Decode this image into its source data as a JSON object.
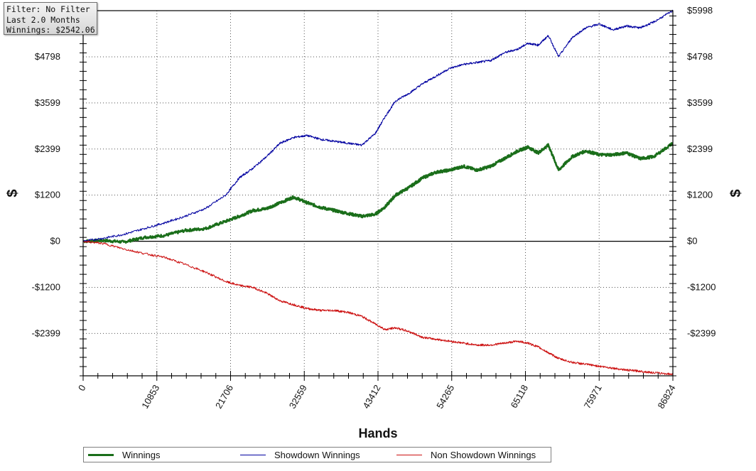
{
  "info": {
    "filter": "Filter: No Filter",
    "period": "Last 2.0 Months",
    "winnings": "Winnings: $2542.06"
  },
  "chart_data": {
    "type": "line",
    "xlabel": "Hands",
    "ylabel": "$",
    "ylabel_right": "$",
    "xlim": [
      0,
      86824
    ],
    "ylim": [
      -3500,
      5998
    ],
    "x_ticks": [
      0,
      10853,
      21706,
      32559,
      43412,
      54265,
      65118,
      75971,
      86824
    ],
    "x_tick_labels": [
      "0",
      "10853",
      "21706",
      "32559",
      "43412",
      "54265",
      "65118",
      "75971",
      "86824"
    ],
    "y_ticks": [
      5998,
      4798,
      3599,
      2399,
      1200,
      0,
      -1200,
      -2399
    ],
    "y_tick_labels": [
      "$5998",
      "$4798",
      "$3599",
      "$2399",
      "$1200",
      "$0",
      "-$1200",
      "-$2399"
    ],
    "grid": true,
    "legend_position": "bottom",
    "series": [
      {
        "name": "Winnings",
        "color": "#1a6e1a",
        "x": [
          0,
          3000,
          6000,
          9000,
          12000,
          15000,
          18000,
          21000,
          23000,
          25000,
          27000,
          29000,
          31000,
          33000,
          35000,
          37000,
          39000,
          41000,
          43000,
          44500,
          46000,
          48000,
          50000,
          52000,
          54000,
          56000,
          58000,
          60000,
          62000,
          64000,
          65500,
          67000,
          68500,
          70000,
          72000,
          74000,
          76000,
          78000,
          80000,
          82000,
          84000,
          86824
        ],
        "y": [
          0,
          20,
          -20,
          100,
          150,
          280,
          330,
          520,
          650,
          800,
          850,
          1000,
          1150,
          1000,
          880,
          800,
          720,
          650,
          700,
          900,
          1200,
          1400,
          1650,
          1800,
          1850,
          1950,
          1850,
          1950,
          2150,
          2350,
          2450,
          2300,
          2500,
          1850,
          2200,
          2350,
          2250,
          2250,
          2300,
          2150,
          2200,
          2550
        ]
      },
      {
        "name": "Showdown Winnings",
        "color": "#0000a0",
        "x": [
          0,
          3000,
          6000,
          9000,
          12000,
          15000,
          18000,
          21000,
          23000,
          25000,
          27000,
          29000,
          31000,
          33000,
          35000,
          37000,
          39000,
          41000,
          43000,
          44500,
          46000,
          48000,
          50000,
          52000,
          54000,
          56000,
          58000,
          60000,
          62000,
          64000,
          65500,
          67000,
          68500,
          70000,
          72000,
          74000,
          76000,
          78000,
          80000,
          82000,
          84000,
          86824
        ],
        "y": [
          0,
          80,
          180,
          330,
          480,
          650,
          850,
          1200,
          1650,
          1900,
          2200,
          2550,
          2700,
          2750,
          2650,
          2600,
          2550,
          2500,
          2800,
          3250,
          3650,
          3850,
          4100,
          4300,
          4500,
          4600,
          4650,
          4700,
          4900,
          5000,
          5150,
          5100,
          5350,
          4800,
          5300,
          5550,
          5650,
          5500,
          5600,
          5550,
          5700,
          5998
        ]
      },
      {
        "name": "Non Showdown Winnings",
        "color": "#cc1010",
        "x": [
          0,
          3000,
          6000,
          9000,
          12000,
          15000,
          18000,
          21000,
          23000,
          25000,
          27000,
          29000,
          31000,
          33000,
          35000,
          37000,
          39000,
          41000,
          43000,
          44500,
          46000,
          48000,
          50000,
          52000,
          54000,
          56000,
          58000,
          60000,
          62000,
          64000,
          65500,
          67000,
          68500,
          70000,
          72000,
          74000,
          76000,
          78000,
          80000,
          82000,
          84000,
          86824
        ],
        "y": [
          0,
          -60,
          -200,
          -320,
          -420,
          -600,
          -800,
          -1050,
          -1150,
          -1200,
          -1350,
          -1550,
          -1650,
          -1750,
          -1800,
          -1800,
          -1850,
          -1950,
          -2150,
          -2300,
          -2250,
          -2350,
          -2500,
          -2550,
          -2600,
          -2650,
          -2700,
          -2700,
          -2650,
          -2600,
          -2650,
          -2750,
          -2900,
          -3050,
          -3150,
          -3200,
          -3250,
          -3300,
          -3350,
          -3380,
          -3420,
          -3460
        ]
      }
    ]
  }
}
